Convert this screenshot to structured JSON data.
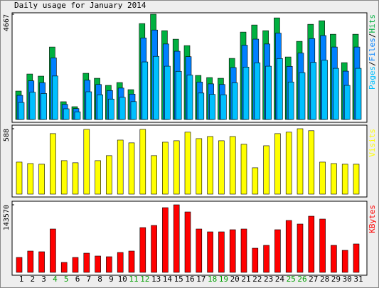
{
  "title": "Daily usage for January 2014",
  "categories": [
    "1",
    "2",
    "3",
    "4",
    "5",
    "6",
    "7",
    "8",
    "9",
    "10",
    "11",
    "12",
    "13",
    "14",
    "15",
    "16",
    "17",
    "18",
    "19",
    "20",
    "21",
    "22",
    "23",
    "24",
    "25",
    "26",
    "27",
    "28",
    "29",
    "30",
    "31"
  ],
  "category_colors": [
    "#000",
    "#000",
    "#000",
    "#00a000",
    "#00a000",
    "#000",
    "#000",
    "#000",
    "#000",
    "#000",
    "#00a000",
    "#00a000",
    "#000",
    "#000",
    "#000",
    "#000",
    "#000",
    "#00a000",
    "#00a000",
    "#000",
    "#000",
    "#000",
    "#000",
    "#000",
    "#00a000",
    "#00a000",
    "#000",
    "#000",
    "#000",
    "#000",
    "#000"
  ],
  "chart_data": [
    {
      "type": "bar",
      "ylim": [
        0,
        4667
      ],
      "yticks": [
        4667
      ],
      "legend_separator": "/",
      "series": [
        {
          "name": "Hits",
          "color": "#00b040",
          "values": [
            1260,
            2016,
            1922,
            3213,
            788,
            567,
            2048,
            1827,
            1512,
            1638,
            1323,
            4253,
            4667,
            3938,
            3560,
            3276,
            1953,
            1859,
            1827,
            2709,
            3875,
            4190,
            3938,
            4505,
            2772,
            3465,
            4221,
            4379,
            3780,
            2520,
            3780
          ]
        },
        {
          "name": "Files",
          "color": "#0080ff",
          "values": [
            1071,
            1714,
            1634,
            2731,
            670,
            482,
            1741,
            1553,
            1285,
            1392,
            1125,
            3615,
            3967,
            3347,
            3026,
            2785,
            1660,
            1580,
            1553,
            2303,
            3294,
            3562,
            3347,
            3829,
            2356,
            2945,
            3588,
            3722,
            3213,
            2142,
            3213
          ]
        },
        {
          "name": "Pages",
          "color": "#00c0ff",
          "values": [
            756,
            1210,
            1153,
            1928,
            473,
            340,
            1229,
            1096,
            907,
            983,
            794,
            2552,
            2800,
            2363,
            2136,
            1966,
            1172,
            1115,
            1096,
            1625,
            2325,
            2514,
            2363,
            2703,
            1663,
            2079,
            2533,
            2627,
            2268,
            1512,
            2268
          ]
        }
      ]
    },
    {
      "type": "bar",
      "ylim": [
        0,
        588
      ],
      "yticks": [
        588
      ],
      "series": [
        {
          "name": "Visits",
          "color": "#ffff00",
          "values": [
            288,
            275,
            269,
            544,
            301,
            282,
            582,
            301,
            346,
            486,
            461,
            582,
            346,
            467,
            480,
            557,
            499,
            518,
            480,
            518,
            448,
            237,
            435,
            544,
            557,
            588,
            570,
            288,
            275,
            269,
            269
          ]
        }
      ]
    },
    {
      "type": "bar",
      "ylim": [
        0,
        143570
      ],
      "yticks": [
        143570
      ],
      "series": [
        {
          "name": "KBytes",
          "color": "#ff0000",
          "values": [
            31731,
            45330,
            43819,
            92171,
            21154,
            31731,
            40797,
            34753,
            33242,
            42308,
            45330,
            95193,
            99726,
            137501,
            143570,
            128435,
            92171,
            86127,
            86127,
            90660,
            92171,
            51374,
            57418,
            90660,
            110303,
            102748,
            119369,
            113325,
            57418,
            46841,
            60440
          ]
        }
      ]
    }
  ]
}
